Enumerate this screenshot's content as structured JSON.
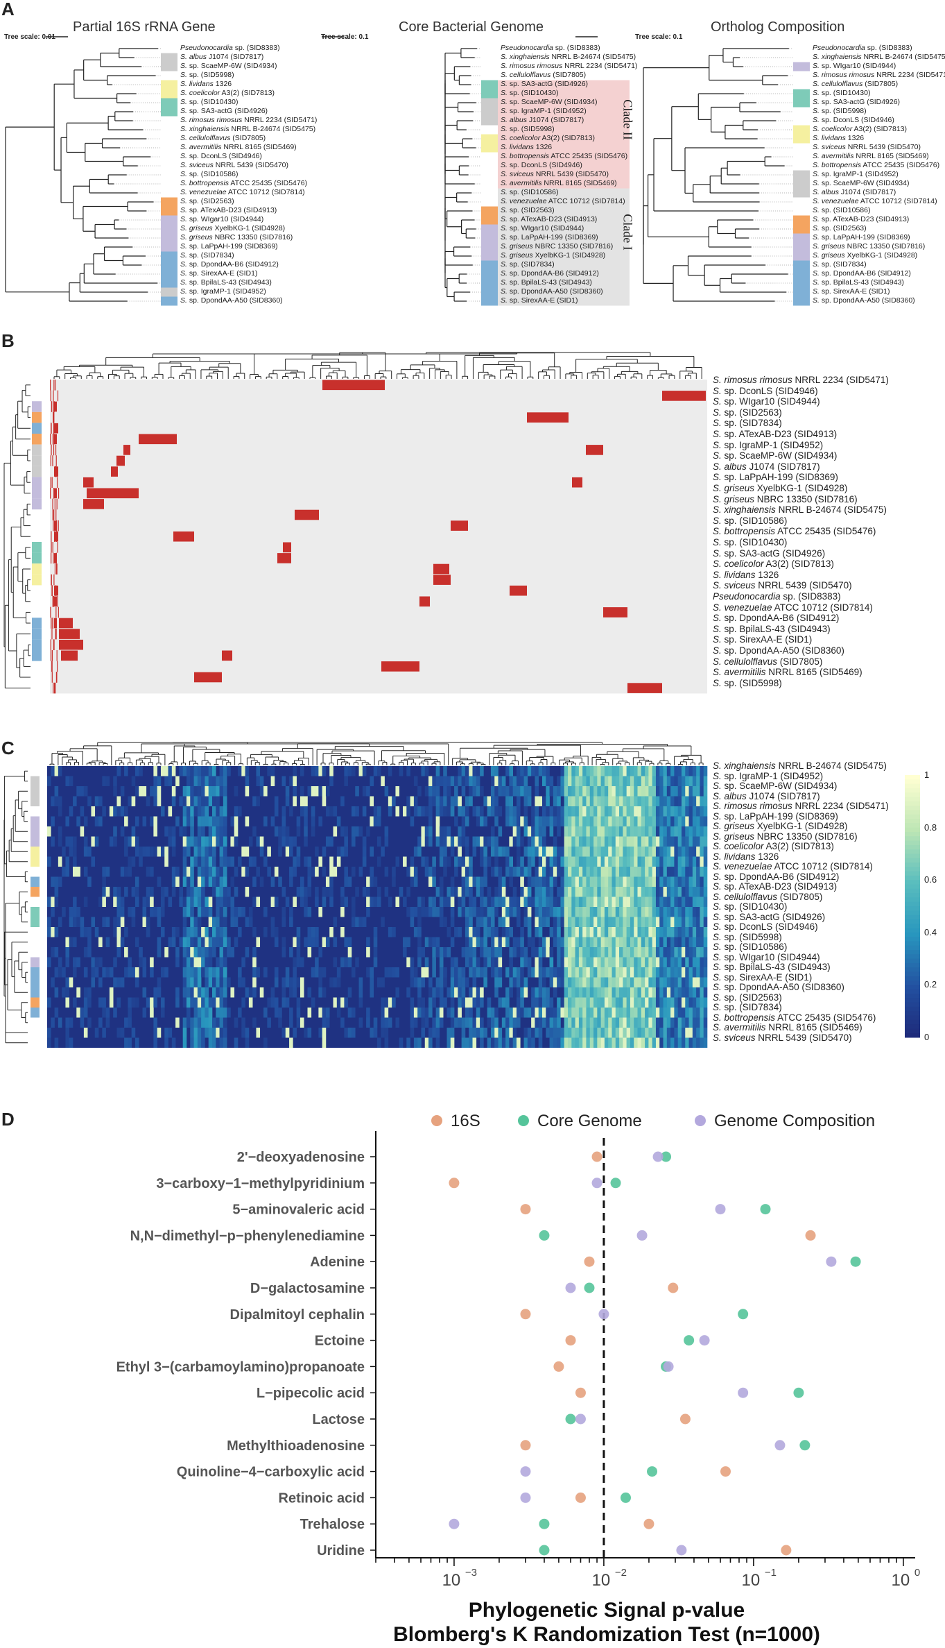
{
  "panels": {
    "A": "A",
    "B": "B",
    "C": "C",
    "D": "D"
  },
  "panelA": {
    "titles": [
      "Partial 16S rRNA Gene",
      "Core Bacterial Genome",
      "Ortholog Composition"
    ],
    "scales": [
      "Tree scale: 0.01",
      "Tree scale: 0.1",
      "Tree scale: 0.1"
    ],
    "trees": [
      {
        "tips": [
          {
            "label": "Pseudonocardia sp. (SID8383)",
            "c": ""
          },
          {
            "label": "S. albus J1074 (SID7817)",
            "c": "#cccccc"
          },
          {
            "label": "S. sp. ScaeMP-6W (SID4934)",
            "c": "#cccccc"
          },
          {
            "label": "S. sp. (SID5998)",
            "c": ""
          },
          {
            "label": "S. lividans 1326",
            "c": "#f5f0a0"
          },
          {
            "label": "S. coelicolor A3(2) (SID7813)",
            "c": "#f5f0a0"
          },
          {
            "label": "S. sp. (SID10430)",
            "c": "#7ecbb8"
          },
          {
            "label": "S. sp. SA3-actG (SID4926)",
            "c": "#7ecbb8"
          },
          {
            "label": "S. rimosus rimosus NRRL 2234 (SID5471)",
            "c": ""
          },
          {
            "label": "S. xinghaiensis NRRL B-24674 (SID5475)",
            "c": ""
          },
          {
            "label": "S. cellulolflavus (SID7805)",
            "c": ""
          },
          {
            "label": "S. avermitilis NRRL 8165 (SID5469)",
            "c": ""
          },
          {
            "label": "S. sp. DconLS (SID4946)",
            "c": ""
          },
          {
            "label": "S. sviceus NRRL 5439 (SID5470)",
            "c": ""
          },
          {
            "label": "S. sp. (SID10586)",
            "c": ""
          },
          {
            "label": "S. bottropensis ATCC 25435 (SID5476)",
            "c": ""
          },
          {
            "label": "S. venezuelae ATCC 10712 (SID7814)",
            "c": ""
          },
          {
            "label": "S. sp. (SID2563)",
            "c": "#f4a460"
          },
          {
            "label": "S. sp. ATexAB-D23 (SID4913)",
            "c": "#f4a460"
          },
          {
            "label": "S. sp. WIgar10 (SID4944)",
            "c": "#c3bcdc"
          },
          {
            "label": "S. griseus XyelbKG-1 (SID4928)",
            "c": "#c3bcdc"
          },
          {
            "label": "S. griseus NBRC 13350 (SID7816)",
            "c": "#c3bcdc"
          },
          {
            "label": "S. sp. LaPpAH-199 (SID8369)",
            "c": "#c3bcdc"
          },
          {
            "label": "S. sp. (SID7834)",
            "c": "#7fb0d6"
          },
          {
            "label": "S. sp. DpondAA-B6 (SID4912)",
            "c": "#7fb0d6"
          },
          {
            "label": "S. sp. SirexAA-E (SID1)",
            "c": "#7fb0d6"
          },
          {
            "label": "S. sp. BpilaLS-43 (SID4943)",
            "c": "#7fb0d6"
          },
          {
            "label": "S. sp. IgraMP-1 (SID4952)",
            "c": "#cccccc"
          },
          {
            "label": "S. sp. DpondAA-A50 (SID8360)",
            "c": "#7fb0d6"
          }
        ]
      },
      {
        "tips": [
          {
            "label": "Pseudonocardia sp. (SID8383)",
            "c": ""
          },
          {
            "label": "S. xinghaiensis NRRL B-24674 (SID5475)",
            "c": ""
          },
          {
            "label": "S. rimosus rimosus NRRL 2234 (SID5471)",
            "c": ""
          },
          {
            "label": "S. cellulolflavus (SID7805)",
            "c": ""
          },
          {
            "label": "S. sp. SA3-actG (SID4926)",
            "c": "#7ecbb8"
          },
          {
            "label": "S. sp. (SID10430)",
            "c": "#7ecbb8"
          },
          {
            "label": "S. sp. ScaeMP-6W (SID4934)",
            "c": "#cccccc"
          },
          {
            "label": "S. sp. IgraMP-1 (SID4952)",
            "c": "#cccccc"
          },
          {
            "label": "S. albus J1074 (SID7817)",
            "c": "#cccccc"
          },
          {
            "label": "S. sp. (SID5998)",
            "c": ""
          },
          {
            "label": "S. coelicolor A3(2) (SID7813)",
            "c": "#f5f0a0"
          },
          {
            "label": "S. lividans 1326",
            "c": "#f5f0a0"
          },
          {
            "label": "S. bottropensis ATCC 25435 (SID5476)",
            "c": ""
          },
          {
            "label": "S. sp. DconLS (SID4946)",
            "c": ""
          },
          {
            "label": "S. sviceus NRRL 5439 (SID5470)",
            "c": ""
          },
          {
            "label": "S. avermitilis NRRL 8165 (SID5469)",
            "c": ""
          },
          {
            "label": "S. sp. (SID10586)",
            "c": ""
          },
          {
            "label": "S. venezuelae ATCC 10712 (SID7814)",
            "c": ""
          },
          {
            "label": "S. sp. (SID2563)",
            "c": "#f4a460"
          },
          {
            "label": "S. sp. ATexAB-D23 (SID4913)",
            "c": "#f4a460"
          },
          {
            "label": "S. sp. WIgar10 (SID4944)",
            "c": "#c3bcdc"
          },
          {
            "label": "S. sp. LaPpAH-199 (SID8369)",
            "c": "#c3bcdc"
          },
          {
            "label": "S. griseus NBRC 13350 (SID7816)",
            "c": "#c3bcdc"
          },
          {
            "label": "S. griseus XyelbKG-1 (SID4928)",
            "c": "#c3bcdc"
          },
          {
            "label": "S. sp. (SID7834)",
            "c": "#7fb0d6"
          },
          {
            "label": "S. sp. DpondAA-B6 (SID4912)",
            "c": "#7fb0d6"
          },
          {
            "label": "S. sp. BpilaLS-43 (SID4943)",
            "c": "#7fb0d6"
          },
          {
            "label": "S. sp. DpondAA-A50 (SID8360)",
            "c": "#7fb0d6"
          },
          {
            "label": "S. sp. SirexAA-E (SID1)",
            "c": "#7fb0d6"
          }
        ]
      },
      {
        "tips": [
          {
            "label": "Pseudonocardia sp. (SID8383)",
            "c": ""
          },
          {
            "label": "S. xinghaiensis NRRL B-24674 (SID5475)",
            "c": ""
          },
          {
            "label": "S. sp. WIgar10 (SID4944)",
            "c": "#c3bcdc"
          },
          {
            "label": "S. rimosus rimosus NRRL 2234 (SID5471)",
            "c": ""
          },
          {
            "label": "S. cellulolflavus (SID7805)",
            "c": ""
          },
          {
            "label": "S. sp. (SID10430)",
            "c": "#7ecbb8"
          },
          {
            "label": "S. sp. SA3-actG (SID4926)",
            "c": "#7ecbb8"
          },
          {
            "label": "S. sp. (SID5998)",
            "c": ""
          },
          {
            "label": "S. sp. DconLS (SID4946)",
            "c": ""
          },
          {
            "label": "S. coelicolor A3(2) (SID7813)",
            "c": "#f5f0a0"
          },
          {
            "label": "S. lividans 1326",
            "c": "#f5f0a0"
          },
          {
            "label": "S. sviceus NRRL 5439 (SID5470)",
            "c": ""
          },
          {
            "label": "S. avermitilis NRRL 8165 (SID5469)",
            "c": ""
          },
          {
            "label": "S. bottropensis ATCC 25435 (SID5476)",
            "c": ""
          },
          {
            "label": "S. sp. IgraMP-1 (SID4952)",
            "c": "#cccccc"
          },
          {
            "label": "S. sp. ScaeMP-6W (SID4934)",
            "c": "#cccccc"
          },
          {
            "label": "S. albus J1074 (SID7817)",
            "c": "#cccccc"
          },
          {
            "label": "S. venezuelae ATCC 10712 (SID7814)",
            "c": ""
          },
          {
            "label": "S. sp. (SID10586)",
            "c": ""
          },
          {
            "label": "S. sp. ATexAB-D23 (SID4913)",
            "c": "#f4a460"
          },
          {
            "label": "S. sp. (SID2563)",
            "c": "#f4a460"
          },
          {
            "label": "S. sp. LaPpAH-199 (SID8369)",
            "c": "#c3bcdc"
          },
          {
            "label": "S. griseus NBRC 13350 (SID7816)",
            "c": "#c3bcdc"
          },
          {
            "label": "S. griseus XyelbKG-1 (SID4928)",
            "c": "#c3bcdc"
          },
          {
            "label": "S. sp. (SID7834)",
            "c": "#7fb0d6"
          },
          {
            "label": "S. sp. DpondAA-B6 (SID4912)",
            "c": "#7fb0d6"
          },
          {
            "label": "S. sp. BpilaLS-43 (SID4943)",
            "c": "#7fb0d6"
          },
          {
            "label": "S. sp. SirexAA-E (SID1)",
            "c": "#7fb0d6"
          },
          {
            "label": "S. sp. DpondAA-A50 (SID8360)",
            "c": "#7fb0d6"
          }
        ]
      }
    ],
    "clades": [
      {
        "label": "Clade II",
        "color": "#f2c9c9",
        "from": 4,
        "to": 15
      },
      {
        "label": "Clade I",
        "color": "#dedede",
        "from": 16,
        "to": 28
      }
    ]
  },
  "panelB": {
    "rows": [
      {
        "label": "S. rimosus rimosus NRRL 2234 (SID5471)",
        "c": ""
      },
      {
        "label": "S. sp. DconLS (SID4946)",
        "c": ""
      },
      {
        "label": "S. sp. WIgar10 (SID4944)",
        "c": "#c3bcdc"
      },
      {
        "label": "S. sp. (SID2563)",
        "c": "#f4a460"
      },
      {
        "label": "S. sp. (SID7834)",
        "c": "#7fb0d6"
      },
      {
        "label": "S. sp. ATexAB-D23 (SID4913)",
        "c": "#f4a460"
      },
      {
        "label": "S. sp. IgraMP-1 (SID4952)",
        "c": "#cccccc"
      },
      {
        "label": "S. sp. ScaeMP-6W (SID4934)",
        "c": "#cccccc"
      },
      {
        "label": "S. albus J1074 (SID7817)",
        "c": "#cccccc"
      },
      {
        "label": "S. sp. LaPpAH-199 (SID8369)",
        "c": "#c3bcdc"
      },
      {
        "label": "S. griseus XyelbKG-1 (SID4928)",
        "c": "#c3bcdc"
      },
      {
        "label": "S. griseus NBRC 13350 (SID7816)",
        "c": "#c3bcdc"
      },
      {
        "label": "S. xinghaiensis NRRL B-24674 (SID5475)",
        "c": ""
      },
      {
        "label": "S. sp. (SID10586)",
        "c": ""
      },
      {
        "label": "S. bottropensis ATCC 25435 (SID5476)",
        "c": ""
      },
      {
        "label": "S. sp. (SID10430)",
        "c": "#7ecbb8"
      },
      {
        "label": "S. sp. SA3-actG (SID4926)",
        "c": "#7ecbb8"
      },
      {
        "label": "S. coelicolor A3(2) (SID7813)",
        "c": "#f5f0a0"
      },
      {
        "label": "S. lividans 1326",
        "c": "#f5f0a0"
      },
      {
        "label": "S. sviceus NRRL 5439 (SID5470)",
        "c": ""
      },
      {
        "label": "Pseudonocardia sp. (SID8383)",
        "c": ""
      },
      {
        "label": "S. venezuelae ATCC 10712 (SID7814)",
        "c": ""
      },
      {
        "label": "S. sp. DpondAA-B6 (SID4912)",
        "c": "#7fb0d6"
      },
      {
        "label": "S. sp. BpilaLS-43 (SID4943)",
        "c": "#7fb0d6"
      },
      {
        "label": "S. sp. SirexAA-E (SID1)",
        "c": "#7fb0d6"
      },
      {
        "label": "S. sp. DpondAA-A50 (SID8360)",
        "c": "#7fb0d6"
      },
      {
        "label": "S. cellulolflavus (SID7805)",
        "c": ""
      },
      {
        "label": "S. avermitilis NRRL 8165 (SID5469)",
        "c": ""
      },
      {
        "label": "S. sp. (SID5998)",
        "c": ""
      }
    ],
    "presence_color": "#c8302c",
    "absence_color": "#ececec"
  },
  "panelC": {
    "rows": [
      {
        "label": "S. xinghaiensis NRRL B-24674 (SID5475)",
        "c": ""
      },
      {
        "label": "S. sp. IgraMP-1 (SID4952)",
        "c": "#cccccc"
      },
      {
        "label": "S. sp. ScaeMP-6W (SID4934)",
        "c": "#cccccc"
      },
      {
        "label": "S. albus J1074 (SID7817)",
        "c": "#cccccc"
      },
      {
        "label": "S. rimosus rimosus NRRL 2234 (SID5471)",
        "c": ""
      },
      {
        "label": "S. sp. LaPpAH-199 (SID8369)",
        "c": "#c3bcdc"
      },
      {
        "label": "S. griseus XyelbKG-1 (SID4928)",
        "c": "#c3bcdc"
      },
      {
        "label": "S. griseus NBRC 13350 (SID7816)",
        "c": "#c3bcdc"
      },
      {
        "label": "S. coelicolor A3(2) (SID7813)",
        "c": "#f5f0a0"
      },
      {
        "label": "S. lividans 1326",
        "c": "#f5f0a0"
      },
      {
        "label": "S. venezuelae ATCC 10712 (SID7814)",
        "c": ""
      },
      {
        "label": "S. sp. DpondAA-B6 (SID4912)",
        "c": "#7fb0d6"
      },
      {
        "label": "S. sp. ATexAB-D23 (SID4913)",
        "c": "#f4a460"
      },
      {
        "label": "S. cellulolflavus (SID7805)",
        "c": ""
      },
      {
        "label": "S. sp. (SID10430)",
        "c": "#7ecbb8"
      },
      {
        "label": "S. sp. SA3-actG (SID4926)",
        "c": "#7ecbb8"
      },
      {
        "label": "S. sp. DconLS (SID4946)",
        "c": ""
      },
      {
        "label": "S. sp. (SID5998)",
        "c": ""
      },
      {
        "label": "S. sp. (SID10586)",
        "c": ""
      },
      {
        "label": "S. sp. WIgar10 (SID4944)",
        "c": "#c3bcdc"
      },
      {
        "label": "S. sp. BpilaLS-43 (SID4943)",
        "c": "#7fb0d6"
      },
      {
        "label": "S. sp. SirexAA-E (SID1)",
        "c": "#7fb0d6"
      },
      {
        "label": "S. sp. DpondAA-A50 (SID8360)",
        "c": "#7fb0d6"
      },
      {
        "label": "S. sp. (SID2563)",
        "c": "#f4a460"
      },
      {
        "label": "S. sp. (SID7834)",
        "c": "#7fb0d6"
      },
      {
        "label": "S. bottropensis ATCC 25435 (SID5476)",
        "c": ""
      },
      {
        "label": "S. avermitilis NRRL 8165 (SID5469)",
        "c": ""
      },
      {
        "label": "S. sviceus NRRL 5439 (SID5470)",
        "c": ""
      }
    ],
    "colorbar_ticks": [
      "0",
      "0.2",
      "0.4",
      "0.6",
      "0.8",
      "1"
    ]
  },
  "chart_data": {
    "type": "scatter",
    "xscale": "log",
    "xlim": [
      0.0003,
      1.2
    ],
    "xticks": [
      0.001,
      0.01,
      0.1,
      1
    ],
    "xtick_labels": [
      "10",
      "10",
      "10",
      "10"
    ],
    "xtick_exps": [
      "−3",
      "−2",
      "−1",
      "0"
    ],
    "xlabel": "Phylogenetic Signal p-value",
    "xlabel2": "Blomberg's K Randomization Test (n=1000)",
    "vline": 0.01,
    "categories": [
      "2'−deoxyadenosine",
      "3−carboxy−1−methylpyridinium",
      "5−aminovaleric acid",
      "N,N−dimethyl−p−phenylenediamine",
      "Adenine",
      "D−galactosamine",
      "Dipalmitoyl cephalin",
      "Ectoine",
      "Ethyl 3−(carbamoylamino)propanoate",
      "L−pipecolic acid",
      "Lactose",
      "Methylthioadenosine",
      "Quinoline−4−carboxylic acid",
      "Retinoic acid",
      "Trehalose",
      "Uridine"
    ],
    "series": [
      {
        "name": "16S",
        "color": "#e6a27e",
        "values": [
          0.009,
          0.001,
          0.003,
          0.24,
          0.008,
          0.029,
          0.003,
          0.006,
          0.005,
          0.007,
          0.035,
          0.003,
          0.065,
          0.007,
          0.02,
          0.165
        ]
      },
      {
        "name": "Core Genome",
        "color": "#55c49a",
        "values": [
          0.026,
          0.012,
          0.12,
          0.004,
          0.48,
          0.008,
          0.085,
          0.037,
          0.026,
          0.2,
          0.006,
          0.22,
          0.021,
          0.014,
          0.004,
          0.004
        ]
      },
      {
        "name": "Genome Composition",
        "color": "#b3a8dd",
        "values": [
          0.023,
          0.009,
          0.06,
          0.018,
          0.33,
          0.006,
          0.01,
          0.047,
          0.027,
          0.085,
          0.007,
          0.15,
          0.003,
          0.003,
          0.001,
          0.033
        ]
      }
    ]
  }
}
